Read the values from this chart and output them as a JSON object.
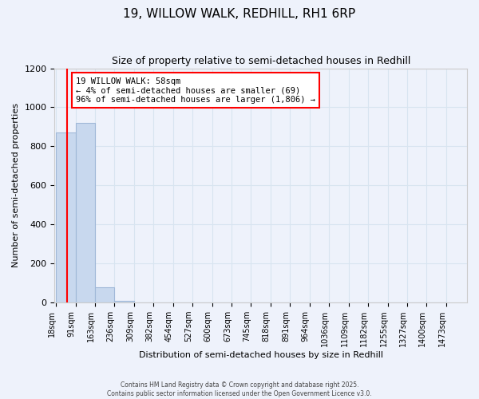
{
  "title": "19, WILLOW WALK, REDHILL, RH1 6RP",
  "subtitle": "Size of property relative to semi-detached houses in Redhill",
  "xlabel": "Distribution of semi-detached houses by size in Redhill",
  "ylabel": "Number of semi-detached properties",
  "annotation_line1": "19 WILLOW WALK: 58sqm",
  "annotation_line2": "← 4% of semi-detached houses are smaller (69)",
  "annotation_line3": "96% of semi-detached houses are larger (1,806) →",
  "bins": [
    18,
    91,
    163,
    236,
    309,
    382,
    454,
    527,
    600,
    673,
    745,
    818,
    891,
    964,
    1036,
    1109,
    1182,
    1255,
    1327,
    1400,
    1473
  ],
  "bin_labels": [
    "18sqm",
    "91sqm",
    "163sqm",
    "236sqm",
    "309sqm",
    "382sqm",
    "454sqm",
    "527sqm",
    "600sqm",
    "673sqm",
    "745sqm",
    "818sqm",
    "891sqm",
    "964sqm",
    "1036sqm",
    "1109sqm",
    "1182sqm",
    "1255sqm",
    "1327sqm",
    "1400sqm",
    "1473sqm"
  ],
  "counts": [
    870,
    920,
    80,
    10,
    2,
    1,
    0,
    0,
    0,
    0,
    0,
    0,
    0,
    0,
    0,
    0,
    0,
    0,
    0,
    0
  ],
  "bar_color": "#c8d8ee",
  "bar_edge_color": "#a0b8d8",
  "red_line_x": 58,
  "ylim": [
    0,
    1200
  ],
  "yticks": [
    0,
    200,
    400,
    600,
    800,
    1000,
    1200
  ],
  "background_color": "#eef2fb",
  "grid_color": "#d8e4f0",
  "footer_line1": "Contains HM Land Registry data © Crown copyright and database right 2025.",
  "footer_line2": "Contains public sector information licensed under the Open Government Licence v3.0."
}
